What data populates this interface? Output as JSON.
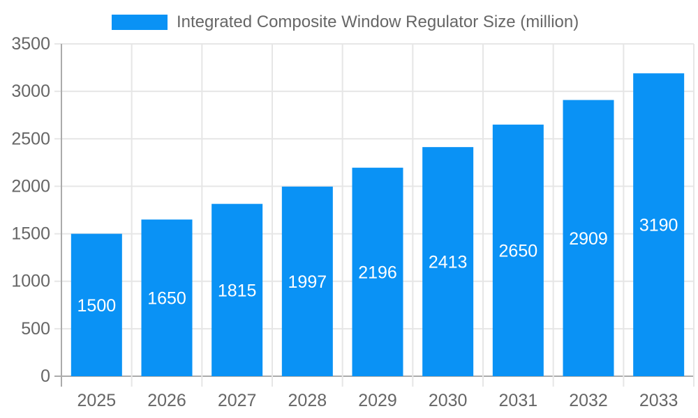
{
  "legend": {
    "items": [
      {
        "label": "Integrated Composite Window Regulator Size (million)",
        "color": "#0a92f5"
      }
    ]
  },
  "chart_data": {
    "type": "bar",
    "title": "Integrated Composite Window Regulator Size (million)",
    "categories": [
      "2025",
      "2026",
      "2027",
      "2028",
      "2029",
      "2030",
      "2031",
      "2032",
      "2033"
    ],
    "series": [
      {
        "name": "Integrated Composite Window Regulator Size (million)",
        "values": [
          1500,
          1650,
          1815,
          1997,
          2196,
          2413,
          2650,
          2909,
          3190
        ]
      }
    ],
    "value_labels": {
      "position": "inside-center",
      "color": "#ffffff"
    },
    "xlabel": "",
    "ylabel": "",
    "ylim": [
      0,
      3500
    ],
    "yticks": [
      0,
      500,
      1000,
      1500,
      2000,
      2500,
      3000,
      3500
    ],
    "grid": true,
    "legend_position": "top",
    "colors": {
      "bar": "#0a92f5",
      "axis_text": "#666666",
      "gridline": "#e6e6e6",
      "zero_line": "#ababab",
      "background": "#ffffff"
    }
  }
}
